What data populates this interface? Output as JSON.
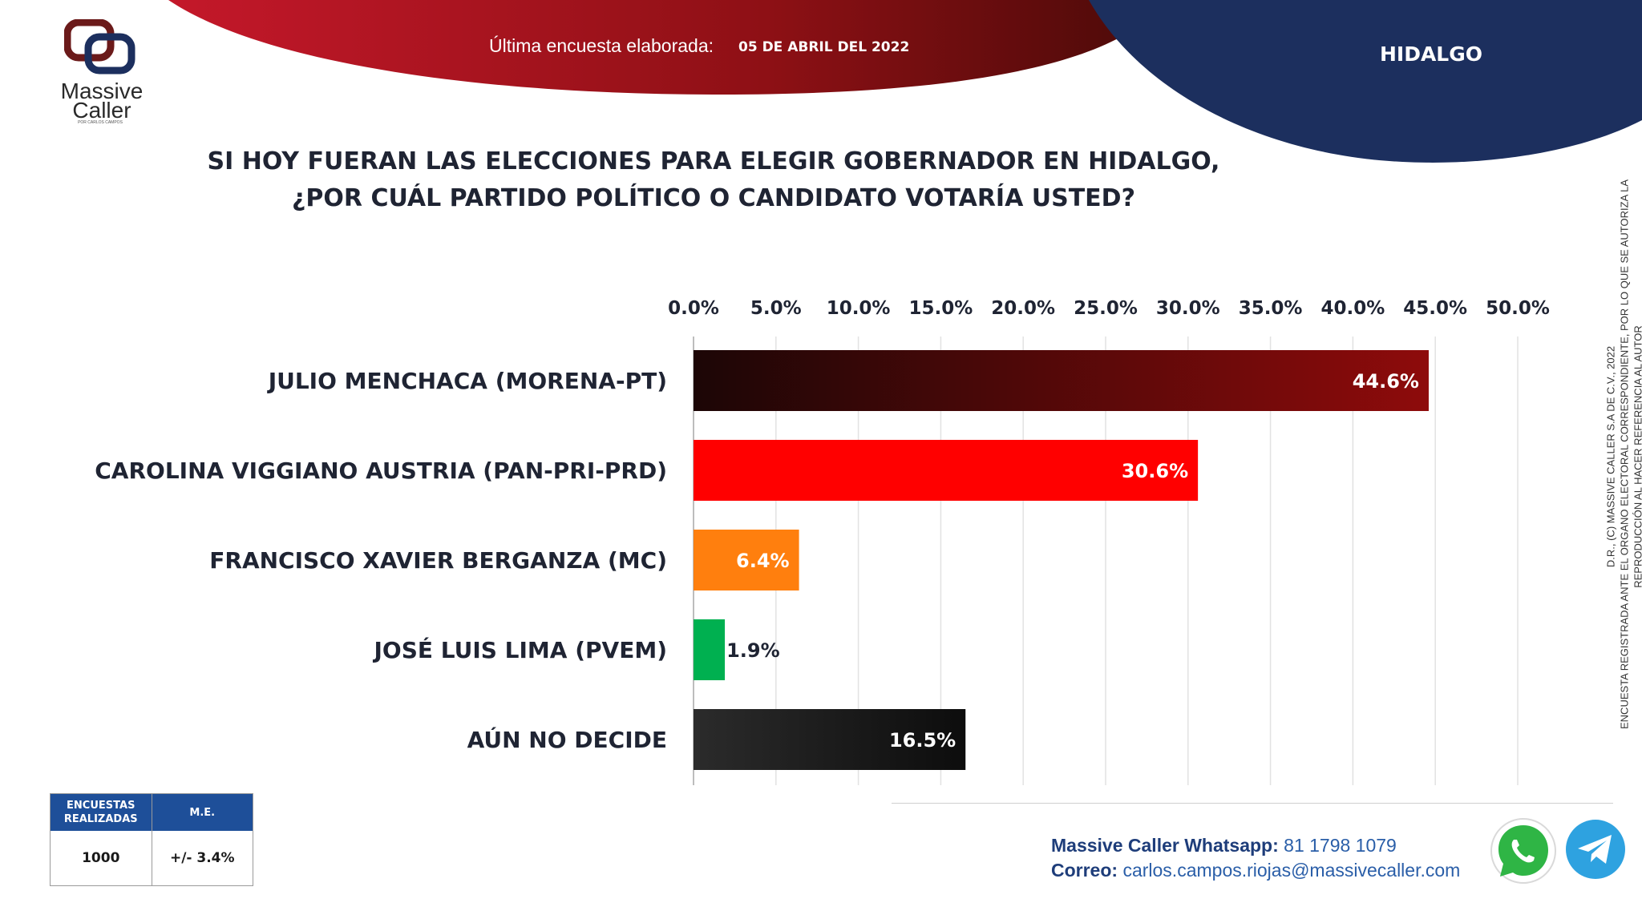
{
  "brand": {
    "name_line1": "Massive",
    "name_line2": "Caller",
    "tagline": "POR CARLOS CAMPOS"
  },
  "header": {
    "date_label": "Última encuesta elaborada:",
    "date_value": "05 DE ABRIL DEL 2022",
    "state": "HIDALGO"
  },
  "question": {
    "line1": "SI HOY FUERAN LAS ELECCIONES PARA ELEGIR GOBERNADOR EN HIDALGO,",
    "line2": "¿POR CUÁL PARTIDO POLÍTICO O CANDIDATO VOTARÍA USTED?"
  },
  "chart_data": {
    "type": "bar",
    "orientation": "horizontal",
    "categories": [
      "JULIO MENCHACA (MORENA-PT)",
      "CAROLINA VIGGIANO AUSTRIA (PAN-PRI-PRD)",
      "FRANCISCO XAVIER BERGANZA (MC)",
      "JOSÉ LUIS LIMA (PVEM)",
      "AÚN NO DECIDE"
    ],
    "values": [
      44.6,
      30.6,
      6.4,
      1.9,
      16.5
    ],
    "value_labels": [
      "44.6%",
      "30.6%",
      "6.4%",
      "1.9%",
      "16.5%"
    ],
    "xlim": [
      0,
      50
    ],
    "x_ticks": [
      "0.0%",
      "5.0%",
      "10.0%",
      "15.0%",
      "20.0%",
      "25.0%",
      "30.0%",
      "35.0%",
      "40.0%",
      "45.0%",
      "50.0%"
    ],
    "x_axis_position": "top",
    "grid": true,
    "bar_colors": [
      "#8b0b0b",
      "#ff0000",
      "#ff7f0e",
      "#00b050",
      "#1a1a1a"
    ]
  },
  "stats": {
    "col1_header_line1": "ENCUESTAS",
    "col1_header_line2": "REALIZADAS",
    "col2_header": "M.E.",
    "col1_value": "1000",
    "col2_value": "+/- 3.4%"
  },
  "contact": {
    "whatsapp_label": "Massive Caller Whatsapp:",
    "whatsapp_value": "81 1798 1079",
    "email_label": "Correo:",
    "email_value": "carlos.campos.riojas@massivecaller.com"
  },
  "side_note": {
    "line1": "D.R., (C) MASSIVE CALLER S.A DE C.V., 2022",
    "line2": "ENCUESTA REGISTRADA ANTE EL ORGANO ELECTORAL CORRESPONDIENTE, POR LO QUE SE AUTORIZA LA",
    "line3": "REPRODUCCIÓN AL HACER REFERENCIA AL AUTOR"
  },
  "icons": [
    "whatsapp-icon",
    "telegram-icon"
  ],
  "colors": {
    "header_red": "#a5141c",
    "header_navy": "#1c2f5e",
    "table_blue": "#1e4f99"
  }
}
